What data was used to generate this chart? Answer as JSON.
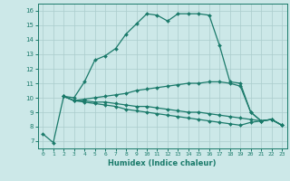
{
  "title": "",
  "xlabel": "Humidex (Indice chaleur)",
  "ylabel": "",
  "bg_color": "#cce8e8",
  "grid_color": "#aacccc",
  "line_color": "#1a7a6a",
  "xlim": [
    -0.5,
    23.5
  ],
  "ylim": [
    6.5,
    16.5
  ],
  "xticks": [
    0,
    1,
    2,
    3,
    4,
    5,
    6,
    7,
    8,
    9,
    10,
    11,
    12,
    13,
    14,
    15,
    16,
    17,
    18,
    19,
    20,
    21,
    22,
    23
  ],
  "yticks": [
    7,
    8,
    9,
    10,
    11,
    12,
    13,
    14,
    15,
    16
  ],
  "line1_x": [
    0,
    1,
    2,
    3,
    4,
    5,
    6,
    7,
    8,
    9,
    10,
    11,
    12,
    13,
    14,
    15,
    16,
    17,
    18,
    19,
    20,
    21,
    22,
    23
  ],
  "line1_y": [
    7.5,
    6.9,
    10.1,
    10.0,
    11.1,
    12.6,
    12.9,
    13.4,
    14.4,
    15.1,
    15.8,
    15.7,
    15.3,
    15.8,
    15.8,
    15.8,
    15.7,
    13.6,
    11.1,
    11.0,
    9.0,
    8.4,
    8.5,
    8.1
  ],
  "line2_x": [
    2,
    3,
    4,
    5,
    6,
    7,
    8,
    9,
    10,
    11,
    12,
    13,
    14,
    15,
    16,
    17,
    18,
    19,
    20,
    21,
    22,
    23
  ],
  "line2_y": [
    10.1,
    9.8,
    9.9,
    10.0,
    10.1,
    10.2,
    10.3,
    10.5,
    10.6,
    10.7,
    10.8,
    10.9,
    11.0,
    11.0,
    11.1,
    11.1,
    11.0,
    10.8,
    9.0,
    8.4,
    8.5,
    8.1
  ],
  "line3_x": [
    2,
    3,
    4,
    5,
    6,
    7,
    8,
    9,
    10,
    11,
    12,
    13,
    14,
    15,
    16,
    17,
    18,
    19,
    20,
    21,
    22,
    23
  ],
  "line3_y": [
    10.1,
    9.8,
    9.8,
    9.7,
    9.7,
    9.6,
    9.5,
    9.4,
    9.4,
    9.3,
    9.2,
    9.1,
    9.0,
    9.0,
    8.9,
    8.8,
    8.7,
    8.6,
    8.5,
    8.4,
    8.5,
    8.1
  ],
  "line4_x": [
    2,
    3,
    4,
    5,
    6,
    7,
    8,
    9,
    10,
    11,
    12,
    13,
    14,
    15,
    16,
    17,
    18,
    19,
    20,
    21,
    22,
    23
  ],
  "line4_y": [
    10.1,
    9.8,
    9.7,
    9.6,
    9.5,
    9.4,
    9.2,
    9.1,
    9.0,
    8.9,
    8.8,
    8.7,
    8.6,
    8.5,
    8.4,
    8.3,
    8.2,
    8.1,
    8.3,
    8.4,
    8.5,
    8.1
  ]
}
